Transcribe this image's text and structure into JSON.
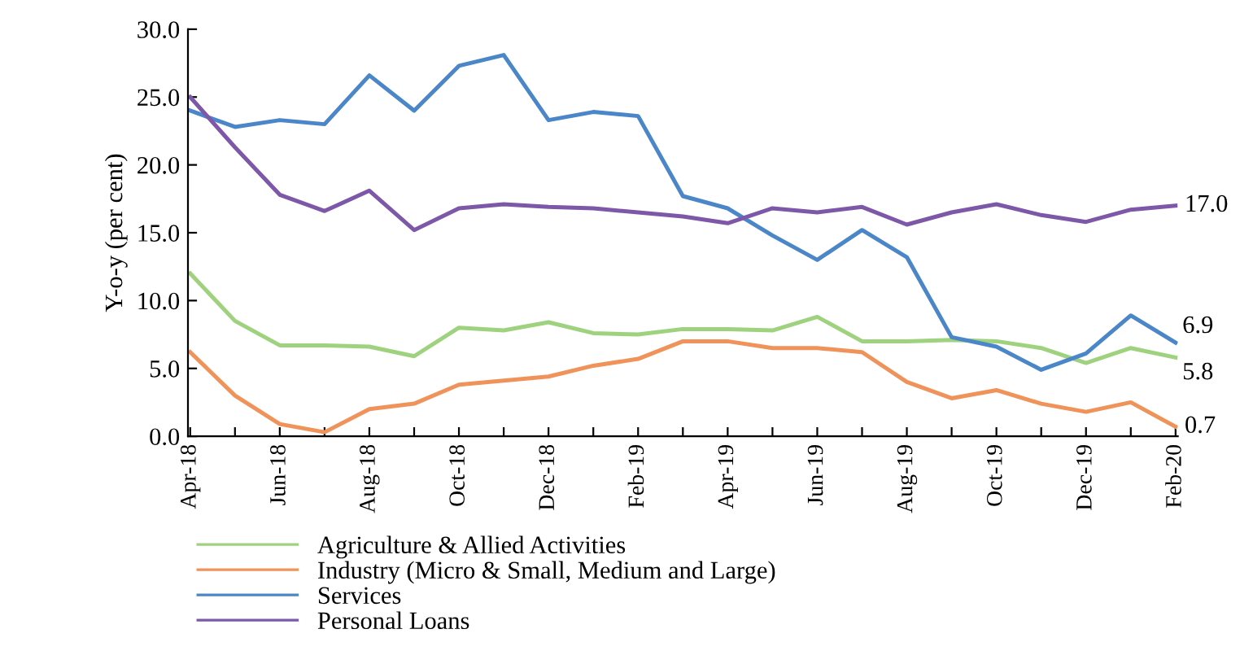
{
  "chart_data": {
    "type": "line",
    "ylabel": "Y-o-y (per cent)",
    "categories": [
      "Apr-18",
      null,
      "Jun-18",
      null,
      "Aug-18",
      null,
      "Oct-18",
      null,
      "Dec-18",
      null,
      "Feb-19",
      null,
      "Apr-19",
      null,
      "Jun-19",
      null,
      "Aug-19",
      null,
      "Oct-19",
      null,
      "Dec-19",
      null,
      "Feb-20"
    ],
    "series": [
      {
        "name": "Agriculture & Allied Activities",
        "color": "#9fd27e",
        "values": [
          12.0,
          8.5,
          6.7,
          6.7,
          6.6,
          5.9,
          8.0,
          7.8,
          8.4,
          7.6,
          7.5,
          7.9,
          7.9,
          7.8,
          8.8,
          7.0,
          7.0,
          7.1,
          7.0,
          6.5,
          5.4,
          6.5,
          5.8
        ],
        "value_labels": [
          null,
          null,
          null,
          null,
          null,
          null,
          null,
          null,
          null,
          null,
          null,
          null,
          null,
          null,
          null,
          null,
          null,
          null,
          null,
          null,
          null,
          null,
          "5.8"
        ]
      },
      {
        "name": "Industry (Micro & Small, Medium and Large)",
        "color": "#f0935a",
        "values": [
          6.2,
          3.0,
          0.9,
          0.3,
          2.0,
          2.4,
          3.8,
          4.1,
          4.4,
          5.2,
          5.7,
          7.0,
          7.0,
          6.5,
          6.5,
          6.2,
          4.0,
          2.8,
          3.4,
          2.4,
          1.8,
          2.5,
          0.7
        ],
        "value_labels": [
          null,
          null,
          null,
          null,
          null,
          null,
          null,
          null,
          null,
          null,
          null,
          null,
          null,
          null,
          null,
          null,
          null,
          null,
          null,
          null,
          null,
          null,
          "0.7"
        ]
      },
      {
        "name": "Services",
        "color": "#4a86c8",
        "values": [
          24.0,
          22.8,
          23.3,
          23.0,
          26.6,
          24.0,
          27.3,
          28.1,
          23.3,
          23.9,
          23.6,
          17.7,
          16.8,
          14.8,
          13.0,
          15.2,
          13.2,
          7.3,
          6.6,
          4.9,
          6.1,
          8.9,
          6.9
        ],
        "value_labels": [
          null,
          null,
          null,
          null,
          null,
          null,
          null,
          null,
          null,
          null,
          null,
          null,
          null,
          null,
          null,
          null,
          null,
          null,
          null,
          null,
          null,
          null,
          "6.9"
        ]
      },
      {
        "name": "Personal Loans",
        "color": "#7e58a8",
        "values": [
          25.0,
          21.3,
          17.8,
          16.6,
          18.1,
          15.2,
          16.8,
          17.1,
          16.9,
          16.8,
          16.5,
          16.2,
          15.7,
          16.8,
          16.5,
          16.9,
          15.6,
          16.5,
          17.1,
          16.3,
          15.8,
          16.7,
          17.0
        ],
        "value_labels": [
          null,
          null,
          null,
          null,
          null,
          null,
          null,
          null,
          null,
          null,
          null,
          null,
          null,
          null,
          null,
          null,
          null,
          null,
          null,
          null,
          null,
          null,
          "17.0"
        ]
      }
    ],
    "ylim": [
      0,
      30
    ],
    "yticks": [
      {
        "value": 0,
        "label": "0.0"
      },
      {
        "value": 5,
        "label": "5.0"
      },
      {
        "value": 10,
        "label": "10.0"
      },
      {
        "value": 15,
        "label": "15.0"
      },
      {
        "value": 20,
        "label": "20.0"
      },
      {
        "value": 25,
        "label": "25.0"
      },
      {
        "value": 30,
        "label": "30.0"
      }
    ],
    "grid": false,
    "legend": "bottom",
    "marker": "none",
    "line_style": "solid"
  }
}
